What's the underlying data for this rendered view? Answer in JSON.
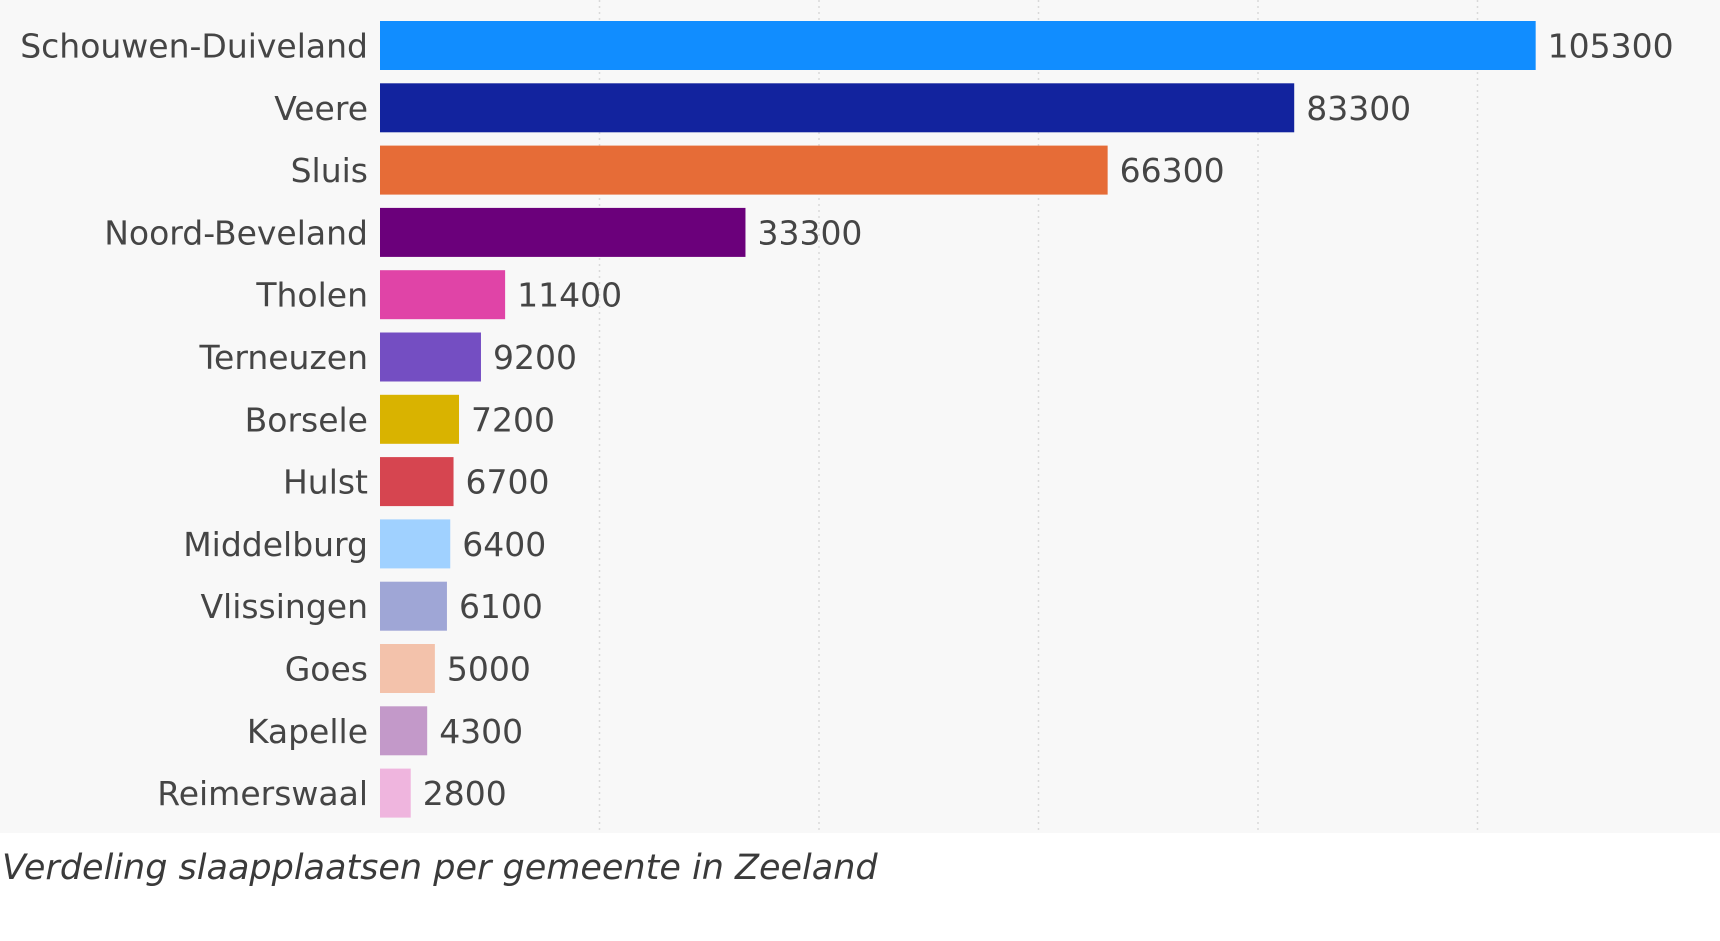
{
  "chart_data": {
    "type": "bar",
    "orientation": "horizontal",
    "categories": [
      "Schouwen-Duiveland",
      "Veere",
      "Sluis",
      "Noord-Beveland",
      "Tholen",
      "Terneuzen",
      "Borsele",
      "Hulst",
      "Middelburg",
      "Vlissingen",
      "Goes",
      "Kapelle",
      "Reimerswaal"
    ],
    "values": [
      105300,
      83300,
      66300,
      33300,
      11400,
      9200,
      7200,
      6700,
      6400,
      6100,
      5000,
      4300,
      2800
    ],
    "value_labels": [
      "105300",
      "83300",
      "66300",
      "33300",
      "11400",
      "9200",
      "7200",
      "6700",
      "6400",
      "6100",
      "5000",
      "4300",
      "2800"
    ],
    "colors": [
      "#118dff",
      "#12239e",
      "#e66c37",
      "#6b007b",
      "#e044a7",
      "#744ec2",
      "#d9b300",
      "#d64550",
      "#a0d1ff",
      "#9fa6d6",
      "#f3c2ab",
      "#c399c9",
      "#efb5de"
    ],
    "xlim": [
      0,
      120000
    ],
    "grid": true,
    "data_labels": true,
    "legend": "none",
    "title": "",
    "xlabel": "",
    "ylabel": ""
  },
  "caption": "Verdeling slaapplaatsen per gemeente in Zeeland"
}
